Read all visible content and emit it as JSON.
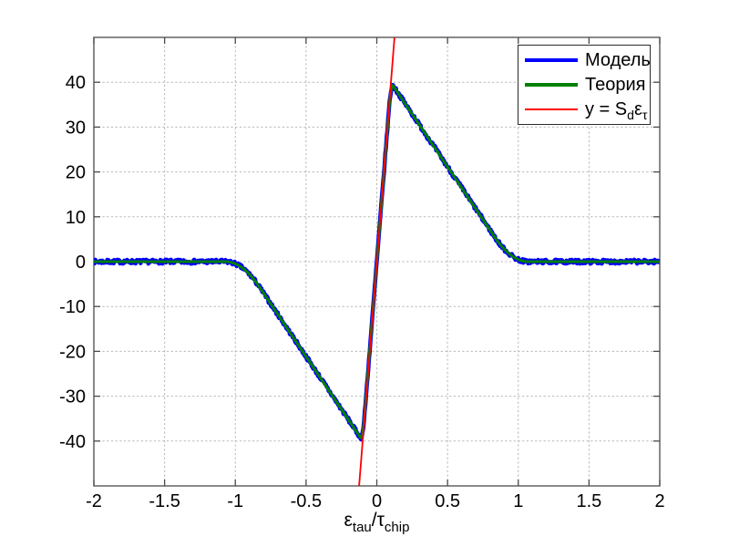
{
  "style": {
    "background": "#ffffff",
    "axis_color": "#4a4a4a",
    "grid_color": "#b8b8b8",
    "text_color": "#000000",
    "legend_border_color": "#2b2b2b"
  },
  "chart_data": {
    "type": "line",
    "title": "",
    "xlabel_parts": {
      "base1": "ε",
      "sub1": "tau",
      "slash": "/",
      "base2": "τ",
      "sub2": "chip"
    },
    "xlim": [
      -2,
      2
    ],
    "ylim": [
      -50,
      50
    ],
    "x_ticks": [
      -2,
      -1.5,
      -1,
      -0.5,
      0,
      0.5,
      1,
      1.5,
      2
    ],
    "x_tick_labels": [
      "-2",
      "-1.5",
      "-1",
      "-0.5",
      "0",
      "0.5",
      "1",
      "1.5",
      "2"
    ],
    "y_ticks": [
      -40,
      -30,
      -20,
      -10,
      0,
      10,
      20,
      30,
      40
    ],
    "y_tick_labels": [
      "-40",
      "-30",
      "-20",
      "-10",
      "0",
      "10",
      "20",
      "30",
      "40"
    ],
    "grid": true,
    "legend_position": "top-right",
    "series": [
      {
        "name": "Модель",
        "color": "#0000ff",
        "line_width": 4.5,
        "legend_line_height": 4,
        "kind": "noisy-discriminator",
        "noise_amplitude": 0.45,
        "noise_seed": 7,
        "sample_step": 0.005
      },
      {
        "name": "Теория",
        "color": "#008000",
        "line_width": 3,
        "legend_line_height": 4,
        "kind": "discriminator",
        "sample_step": 0.004
      },
      {
        "name": "y = S_d ε_τ",
        "label_parts": {
          "pre": "y = S",
          "sub1": "d",
          "mid": "ε",
          "sub2": "τ"
        },
        "color": "#ff0000",
        "line_width": 1.8,
        "legend_line_height": 2,
        "kind": "linear",
        "slope": 400
      }
    ],
    "discriminator_params": {
      "central_slope": 395,
      "descend_slope": -47,
      "zero_cross": 0.95,
      "corner_radius_peak": 0.015,
      "corner_radius_foot": 0.12,
      "peak": {
        "x": 0.113,
        "y": 39.3
      }
    },
    "sampled_theory": {
      "x": [
        -2,
        -1.9,
        -1.8,
        -1.7,
        -1.6,
        -1.5,
        -1.4,
        -1.3,
        -1.2,
        -1.1,
        -1.0,
        -0.9,
        -0.8,
        -0.7,
        -0.6,
        -0.5,
        -0.4,
        -0.3,
        -0.2,
        -0.1,
        0,
        0.1,
        0.2,
        0.3,
        0.4,
        0.5,
        0.6,
        0.7,
        0.8,
        0.9,
        1.0,
        1.1,
        1.2,
        1.3,
        1.4,
        1.5,
        1.6,
        1.7,
        1.8,
        1.9,
        2
      ],
      "y": [
        0,
        0,
        0,
        0,
        0,
        0,
        0,
        0,
        0,
        0,
        -0.5,
        -2.8,
        -7.1,
        -11.8,
        -16.5,
        -21.2,
        -25.9,
        -30.6,
        -35.3,
        -38.1,
        0,
        38.1,
        35.3,
        30.6,
        25.9,
        21.2,
        16.5,
        11.8,
        7.1,
        2.8,
        0.5,
        0,
        0,
        0,
        0,
        0,
        0,
        0,
        0,
        0,
        0
      ]
    }
  }
}
